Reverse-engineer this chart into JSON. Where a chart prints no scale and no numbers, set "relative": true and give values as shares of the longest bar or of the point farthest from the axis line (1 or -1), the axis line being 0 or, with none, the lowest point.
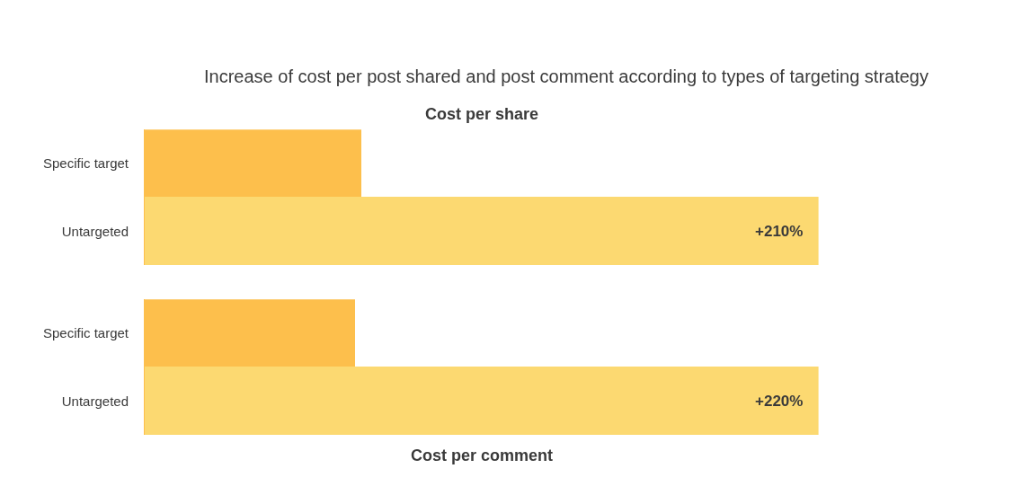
{
  "chart_data": [
    {
      "type": "bar",
      "orientation": "horizontal",
      "relative": true,
      "title": "Increase of cost per post shared and post comment according to types of targeting strategy",
      "subtitle": "Cost per share",
      "categories": [
        "Specific target",
        "Untargeted"
      ],
      "values": [
        0.322,
        1
      ],
      "colors": [
        "#fdbf4c",
        "#fcd971"
      ],
      "annotations": [
        "+210%"
      ],
      "tick_labels": "y"
    },
    {
      "type": "bar",
      "orientation": "horizontal",
      "relative": true,
      "xlabel": "Cost per comment",
      "categories": [
        "Specific target",
        "Untargeted"
      ],
      "values": [
        0.312,
        1
      ],
      "colors": [
        "#fdbf4c",
        "#fcd971"
      ],
      "annotations": [
        "+220%"
      ],
      "tick_labels": "y"
    }
  ]
}
